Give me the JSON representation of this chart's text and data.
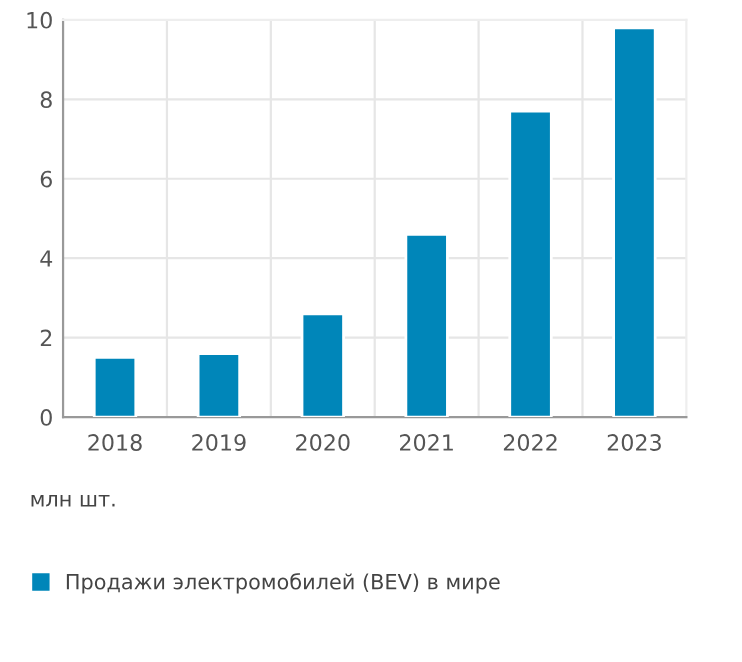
{
  "chart_data": {
    "type": "bar",
    "ylabel": "млн шт.",
    "categories": [
      "2018",
      "2019",
      "2020",
      "2021",
      "2022",
      "2023"
    ],
    "series": [
      {
        "name": "Продажи электромобилей (BEV) в мире",
        "color": "#0086b9",
        "values": [
          1.5,
          1.6,
          2.6,
          4.6,
          7.7,
          9.8
        ]
      }
    ],
    "ylim": [
      0,
      10
    ],
    "yticks": [
      0,
      2,
      4,
      6,
      8,
      10
    ],
    "grid": true,
    "legend": "bottom"
  }
}
